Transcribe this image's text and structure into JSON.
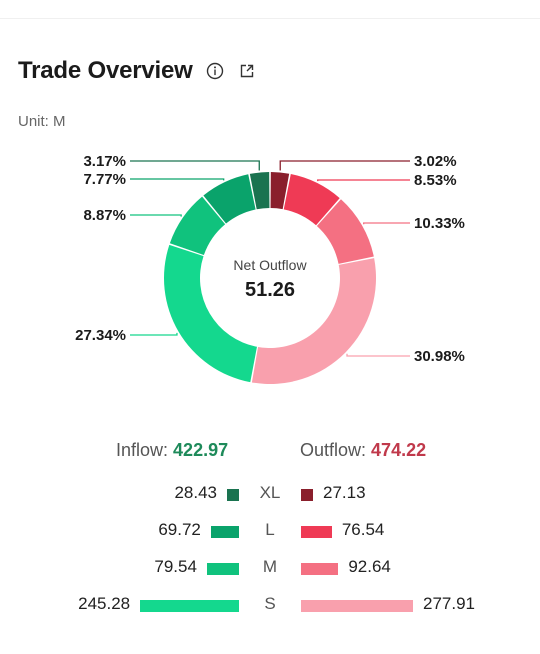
{
  "header": {
    "title": "Trade Overview",
    "info_icon": "info-icon",
    "share_icon": "share-icon"
  },
  "unit": "Unit: M",
  "center": {
    "label": "Net Outflow",
    "value": "51.26"
  },
  "totals": {
    "inflow_label": "Inflow:",
    "inflow_value": "422.97",
    "outflow_label": "Outflow:",
    "outflow_value": "474.22",
    "inflow_color": "#1e8a5a",
    "outflow_color": "#c0394b"
  },
  "chart_data": {
    "type": "pie",
    "variant": "donut",
    "slices": [
      {
        "group": "Outflow",
        "size": "XL",
        "percent": 3.02,
        "label": "3.02%",
        "color": "#8a1f2c"
      },
      {
        "group": "Outflow",
        "size": "L",
        "percent": 8.53,
        "label": "8.53%",
        "color": "#ef3a55"
      },
      {
        "group": "Outflow",
        "size": "M",
        "percent": 10.33,
        "label": "10.33%",
        "color": "#f47082"
      },
      {
        "group": "Outflow",
        "size": "S",
        "percent": 30.98,
        "label": "30.98%",
        "color": "#f9a0ad"
      },
      {
        "group": "Inflow",
        "size": "S",
        "percent": 27.34,
        "label": "27.34%",
        "color": "#14d88e"
      },
      {
        "group": "Inflow",
        "size": "M",
        "percent": 8.87,
        "label": "8.87%",
        "color": "#10c27d"
      },
      {
        "group": "Inflow",
        "size": "L",
        "percent": 7.77,
        "label": "7.77%",
        "color": "#0aa36b"
      },
      {
        "group": "Inflow",
        "size": "XL",
        "percent": 3.17,
        "label": "3.17%",
        "color": "#1a7350"
      }
    ],
    "breakdown": [
      {
        "size": "XL",
        "inflow": 28.43,
        "outflow": 27.13,
        "inflow_color": "#1a7350",
        "outflow_color": "#8a1f2c"
      },
      {
        "size": "L",
        "inflow": 69.72,
        "outflow": 76.54,
        "inflow_color": "#0aa36b",
        "outflow_color": "#ef3a55"
      },
      {
        "size": "M",
        "inflow": 79.54,
        "outflow": 92.64,
        "inflow_color": "#10c27d",
        "outflow_color": "#f47082"
      },
      {
        "size": "S",
        "inflow": 245.28,
        "outflow": 277.91,
        "inflow_color": "#14d88e",
        "outflow_color": "#f9a0ad"
      }
    ]
  }
}
